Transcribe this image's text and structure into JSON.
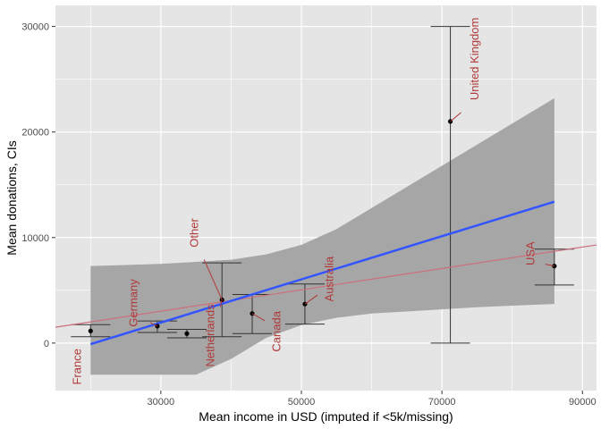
{
  "chart_data": {
    "type": "scatter",
    "title": "",
    "xlabel": "Mean income in USD (imputed if <5k/missing)",
    "ylabel": "Mean donations, CIs",
    "xlim": [
      15000,
      92000
    ],
    "ylim": [
      -4500,
      32000
    ],
    "x_ticks": [
      30000,
      50000,
      70000,
      90000
    ],
    "x_tick_labels": [
      "30000",
      "50000",
      "70000",
      "90000"
    ],
    "y_ticks": [
      0,
      10000,
      20000,
      30000
    ],
    "y_tick_labels": [
      "0",
      "10000",
      "20000",
      "30000"
    ],
    "grid": true,
    "points": [
      {
        "label": "France",
        "x": 20000,
        "y": 1150,
        "lo": 600,
        "hi": 1750
      },
      {
        "label": "Germany",
        "x": 29500,
        "y": 1600,
        "lo": 1000,
        "hi": 2100
      },
      {
        "label": "",
        "x": 33700,
        "y": 900,
        "lo": 500,
        "hi": 1300
      },
      {
        "label": "Other",
        "x": 38700,
        "y": 4100,
        "lo": 600,
        "hi": 7600
      },
      {
        "label": "Netherlands",
        "x": 38700,
        "y": 4100,
        "lo": 600,
        "hi": 7600
      },
      {
        "label": "Canada",
        "x": 43000,
        "y": 2800,
        "lo": 900,
        "hi": 4600
      },
      {
        "label": "Australia",
        "x": 50500,
        "y": 3700,
        "lo": 1800,
        "hi": 5600
      },
      {
        "label": "United Kingdom",
        "x": 71200,
        "y": 21000,
        "lo": 0,
        "hi": 30000
      },
      {
        "label": "USA",
        "x": 86000,
        "y": 7300,
        "lo": 5500,
        "hi": 8900
      }
    ],
    "fit_line": {
      "x": [
        20000,
        86000
      ],
      "y": [
        -100,
        13400
      ]
    },
    "confidence_band": {
      "x": [
        20000,
        25000,
        30000,
        35000,
        40000,
        45000,
        50000,
        55000,
        60000,
        65000,
        70000,
        75000,
        80000,
        86000
      ],
      "lower": [
        -3000,
        -3000,
        -3000,
        -3000,
        -1500,
        500,
        1700,
        2400,
        2800,
        3000,
        3200,
        3400,
        3550,
        3700
      ],
      "upper": [
        7300,
        7400,
        7500,
        7700,
        7900,
        8400,
        9300,
        10800,
        12800,
        14800,
        16800,
        18800,
        20800,
        23200
      ]
    },
    "reference_line": {
      "x": [
        15000,
        92000
      ],
      "y": [
        1500,
        9300
      ]
    },
    "colors": {
      "panel": "#e5e5e5",
      "grid": "#ffffff",
      "band": "#a6a6a6",
      "fit_line": "#3355ff",
      "reference_line": "#cc6f7c",
      "label": "#b03a3a",
      "errorbar": "#333333",
      "point": "#000000"
    }
  }
}
